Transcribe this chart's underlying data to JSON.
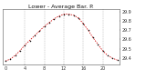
{
  "title": "Lower - Average Bar. P.",
  "hours": [
    0,
    1,
    2,
    3,
    4,
    5,
    6,
    7,
    8,
    9,
    10,
    11,
    12,
    13,
    14,
    15,
    16,
    17,
    18,
    19,
    20,
    21,
    22,
    23
  ],
  "pressure": [
    29.37,
    29.39,
    29.43,
    29.48,
    29.54,
    29.59,
    29.64,
    29.69,
    29.74,
    29.78,
    29.82,
    29.85,
    29.87,
    29.87,
    29.86,
    29.83,
    29.77,
    29.7,
    29.62,
    29.55,
    29.48,
    29.43,
    29.4,
    29.38
  ],
  "line_color": "#cc0000",
  "marker_color": "#111111",
  "grid_color": "#888888",
  "bg_color": "#ffffff",
  "ylim": [
    29.33,
    29.92
  ],
  "ytick_values": [
    29.4,
    29.5,
    29.6,
    29.7,
    29.8,
    29.9
  ],
  "ytick_labels": [
    "29.4",
    "29.5",
    "29.6",
    "29.7",
    "29.8",
    "29.9"
  ],
  "xtick_positions": [
    0,
    4,
    8,
    12,
    16,
    20
  ],
  "xtick_labels": [
    "0",
    "4",
    "8",
    "12",
    "16",
    "20"
  ],
  "vgrid_positions": [
    4,
    8,
    12,
    16,
    20
  ],
  "title_fontsize": 4.5,
  "tick_fontsize": 3.5,
  "marker_size": 1.2,
  "line_width": 0.55
}
